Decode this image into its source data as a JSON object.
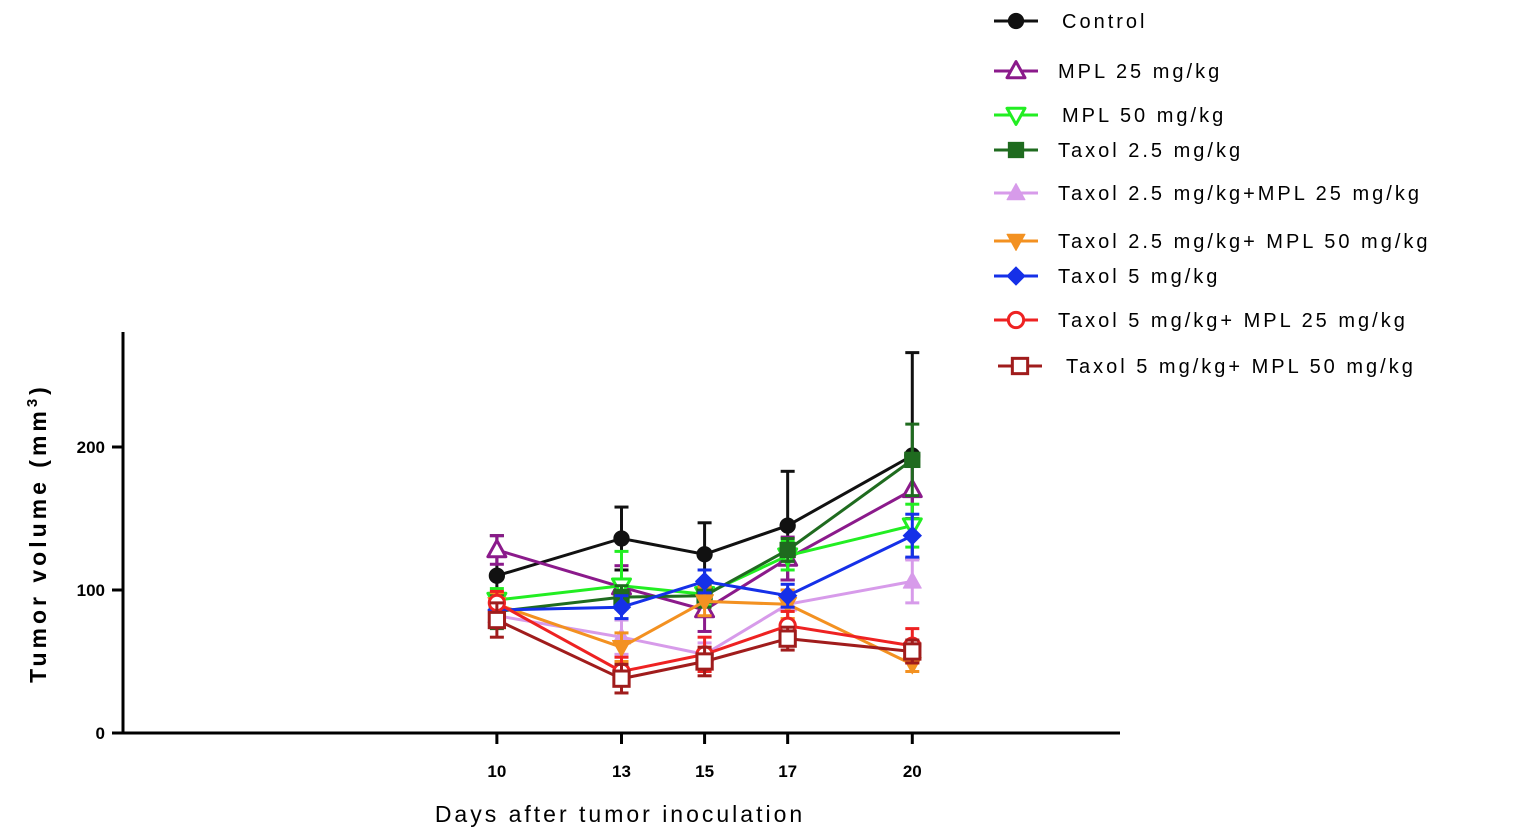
{
  "chart_data": {
    "type": "line",
    "title": "",
    "xlabel": "Days after tumor inoculation",
    "ylabel": "Tumor volume (mm",
    "ylabel_sup": "3",
    "ylabel_close": ")",
    "x": [
      10,
      13,
      15,
      17,
      20
    ],
    "x_ticks": [
      "10",
      "13",
      "15",
      "17",
      "20"
    ],
    "xlim": [
      1,
      25
    ],
    "y_ticks": [
      "0",
      "100",
      "200"
    ],
    "ylim": [
      0,
      280
    ],
    "legend_position": "top-right",
    "grid": false,
    "series": [
      {
        "name": "Control",
        "color": "#111111",
        "marker": "circle",
        "values": [
          110,
          136,
          125,
          145,
          194
        ],
        "errors": [
          28,
          22,
          22,
          38,
          72
        ]
      },
      {
        "name": "MPL 25 mg/kg",
        "color": "#8B1A8B",
        "marker": "triangle-up-open",
        "values": [
          128,
          102,
          86,
          122,
          170
        ],
        "errors": [
          10,
          15,
          15,
          15,
          20
        ]
      },
      {
        "name": "MPL 50 mg/kg",
        "color": "#22EE22",
        "marker": "triangle-down-open",
        "values": [
          93,
          103,
          97,
          124,
          145
        ],
        "errors": [
          8,
          24,
          8,
          10,
          15
        ]
      },
      {
        "name": "Taxol 2.5 mg/kg",
        "color": "#1F6B1F",
        "marker": "square",
        "values": [
          85,
          95,
          96,
          128,
          191
        ],
        "errors": [
          12,
          8,
          8,
          8,
          25
        ]
      },
      {
        "name": "Taxol 2.5 mg/kg+MPL 25 mg/kg",
        "color": "#D79BEA",
        "marker": "triangle-up",
        "values": [
          82,
          67,
          55,
          90,
          106
        ],
        "errors": [
          8,
          12,
          8,
          10,
          15
        ]
      },
      {
        "name": "Taxol 2.5 mg/kg+ MPL 50 mg/kg",
        "color": "#F39121",
        "marker": "triangle-down",
        "values": [
          90,
          60,
          92,
          90,
          48
        ],
        "errors": [
          8,
          10,
          10,
          10,
          5
        ]
      },
      {
        "name": "Taxol 5 mg/kg",
        "color": "#1530E8",
        "marker": "diamond",
        "values": [
          86,
          88,
          106,
          96,
          138
        ],
        "errors": [
          8,
          8,
          8,
          8,
          15
        ]
      },
      {
        "name": "Taxol 5 mg/kg+ MPL 25 mg/kg",
        "color": "#EE2222",
        "marker": "circle-open",
        "values": [
          91,
          43,
          55,
          75,
          61
        ],
        "errors": [
          8,
          10,
          12,
          10,
          12
        ]
      },
      {
        "name": "Taxol 5 mg/kg+ MPL 50 mg/kg",
        "color": "#A01C1C",
        "marker": "square-open",
        "values": [
          79,
          38,
          50,
          66,
          57
        ],
        "errors": [
          12,
          10,
          10,
          8,
          8
        ]
      }
    ]
  }
}
